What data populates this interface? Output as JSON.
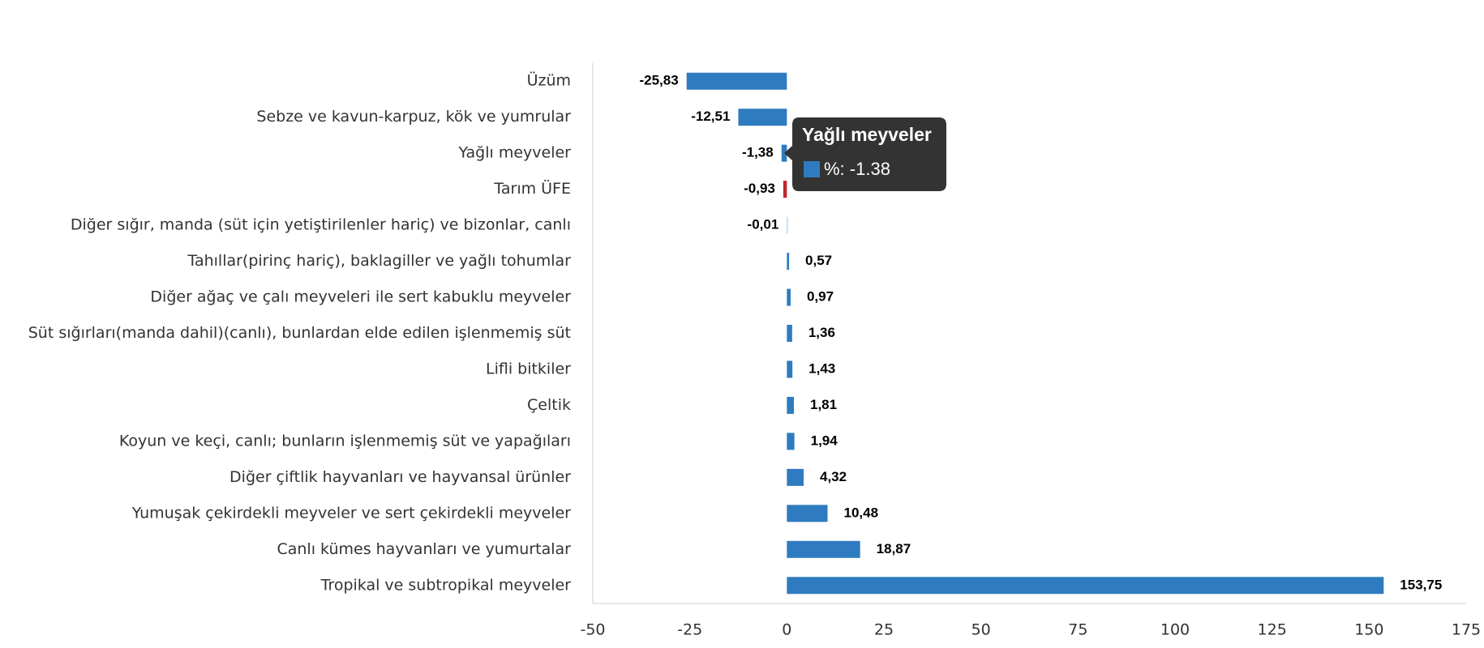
{
  "chart_data": {
    "type": "hbar",
    "categories": [
      "Üzüm",
      "Sebze ve kavun-karpuz, kök ve yumrular",
      "Yağlı meyveler",
      "Tarım ÜFE",
      "Diğer sığır, manda (süt için yetiştirilenler hariç) ve bizonlar, canlı",
      "Tahıllar(pirinç hariç), baklagiller ve yağlı tohumlar",
      "Diğer ağaç ve çalı meyveleri ile sert kabuklu meyveler",
      "Süt sığırları(manda dahil)(canlı), bunlardan elde edilen işlenmemiş süt",
      "Lifli bitkiler",
      "Çeltik",
      "Koyun ve keçi, canlı; bunların işlenmemiş süt ve yapağıları",
      "Diğer çiftlik hayvanları ve hayvansal ürünler",
      "Yumuşak çekirdekli meyveler ve sert çekirdekli meyveler",
      "Canlı kümes hayvanları ve yumurtalar",
      "Tropikal ve subtropikal meyveler"
    ],
    "values": [
      -25.83,
      -12.51,
      -1.38,
      -0.93,
      -0.01,
      0.57,
      0.97,
      1.36,
      1.43,
      1.81,
      1.94,
      4.32,
      10.48,
      18.87,
      153.75
    ],
    "value_labels": [
      "-25,83",
      "-12,51",
      "-1,38",
      "-0,93",
      "-0,01",
      "0,57",
      "0,97",
      "1,36",
      "1,43",
      "1,81",
      "1,94",
      "4,32",
      "10,48",
      "18,87",
      "153,75"
    ],
    "colors": [
      "#2f7bbf",
      "#2f7bbf",
      "#2f7bbf",
      "#c0282d",
      "#9cc3e6",
      "#2f7bbf",
      "#2f7bbf",
      "#2f7bbf",
      "#2f7bbf",
      "#2f7bbf",
      "#2f7bbf",
      "#2f7bbf",
      "#2f7bbf",
      "#2f7bbf",
      "#2f7bbf"
    ],
    "xlim": [
      -50,
      175
    ],
    "xticks": [
      -50,
      -25,
      0,
      25,
      50,
      75,
      100,
      125,
      150,
      175
    ],
    "tooltip": {
      "title": "Yağlı meyveler",
      "text": "%: -1.38"
    }
  }
}
